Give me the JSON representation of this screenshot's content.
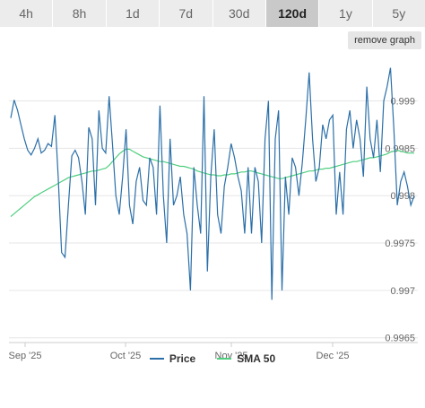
{
  "tabs": [
    {
      "label": "4h",
      "active": false
    },
    {
      "label": "8h",
      "active": false
    },
    {
      "label": "1d",
      "active": false
    },
    {
      "label": "7d",
      "active": false
    },
    {
      "label": "30d",
      "active": false
    },
    {
      "label": "120d",
      "active": true
    },
    {
      "label": "1y",
      "active": false
    },
    {
      "label": "5y",
      "active": false
    }
  ],
  "remove_graph_label": "remove graph",
  "colors": {
    "price": "#2b6fa8",
    "sma": "#4fce7f",
    "grid": "#e6e6e6",
    "tab_bg": "#ececec",
    "tab_active": "#c9c9c9"
  },
  "chart_data": {
    "type": "line",
    "x_tick_labels": [
      "Sep '25",
      "Oct '25",
      "Nov '25",
      "Dec '25"
    ],
    "y_ticks": [
      0.999,
      0.9985,
      0.998,
      0.9975,
      0.997,
      0.9965
    ],
    "y_tick_labels": [
      "0.999",
      "0.9985",
      "0.998",
      "0.9975",
      "0.997",
      "0.9965"
    ],
    "ylim": [
      0.99645,
      0.99945
    ],
    "series": [
      {
        "name": "Price",
        "values": [
          0.99882,
          0.99901,
          0.9989,
          0.99875,
          0.9986,
          0.99848,
          0.99843,
          0.9985,
          0.9986,
          0.99845,
          0.99848,
          0.99855,
          0.99852,
          0.99885,
          0.9982,
          0.9974,
          0.99735,
          0.9979,
          0.99842,
          0.99848,
          0.9984,
          0.99815,
          0.9978,
          0.99872,
          0.9986,
          0.9979,
          0.9989,
          0.9985,
          0.99845,
          0.99905,
          0.99855,
          0.998,
          0.9978,
          0.9982,
          0.9987,
          0.9979,
          0.9977,
          0.99815,
          0.9983,
          0.99795,
          0.9979,
          0.9984,
          0.9983,
          0.9978,
          0.99895,
          0.998,
          0.9975,
          0.9986,
          0.9979,
          0.998,
          0.9982,
          0.9978,
          0.9976,
          0.997,
          0.9983,
          0.9979,
          0.9976,
          0.99905,
          0.9972,
          0.9982,
          0.9987,
          0.9978,
          0.9976,
          0.9981,
          0.9983,
          0.99855,
          0.9984,
          0.9982,
          0.99805,
          0.9976,
          0.9983,
          0.9976,
          0.9983,
          0.99815,
          0.9975,
          0.9986,
          0.999,
          0.9969,
          0.9986,
          0.9989,
          0.997,
          0.9982,
          0.9978,
          0.9984,
          0.9983,
          0.998,
          0.99835,
          0.9988,
          0.9993,
          0.9986,
          0.99815,
          0.9983,
          0.99875,
          0.9986,
          0.9988,
          0.99885,
          0.9978,
          0.99825,
          0.9978,
          0.9987,
          0.9989,
          0.9985,
          0.9988,
          0.9986,
          0.9982,
          0.99915,
          0.9986,
          0.9984,
          0.9988,
          0.99825,
          0.999,
          0.99915,
          0.99935,
          0.9987,
          0.9979,
          0.99815,
          0.99825,
          0.9981,
          0.9979,
          0.998
        ]
      },
      {
        "name": "SMA 50",
        "values": [
          0.99778,
          0.99781,
          0.99784,
          0.99787,
          0.9979,
          0.99793,
          0.99796,
          0.99799,
          0.99801,
          0.99803,
          0.99805,
          0.99807,
          0.99809,
          0.99811,
          0.99813,
          0.99815,
          0.99817,
          0.99819,
          0.9982,
          0.99821,
          0.99822,
          0.99823,
          0.99824,
          0.99825,
          0.99826,
          0.99826,
          0.99827,
          0.99828,
          0.99829,
          0.99832,
          0.99836,
          0.9984,
          0.99844,
          0.99847,
          0.99849,
          0.99849,
          0.99847,
          0.99845,
          0.99843,
          0.99841,
          0.9984,
          0.99839,
          0.99838,
          0.99837,
          0.99836,
          0.99836,
          0.99835,
          0.99834,
          0.99833,
          0.99832,
          0.99831,
          0.99831,
          0.9983,
          0.99829,
          0.99828,
          0.99826,
          0.99825,
          0.99824,
          0.99823,
          0.99822,
          0.99822,
          0.99821,
          0.99821,
          0.99822,
          0.99822,
          0.99823,
          0.99823,
          0.99824,
          0.99825,
          0.99825,
          0.99826,
          0.99826,
          0.99825,
          0.99824,
          0.99823,
          0.99822,
          0.99821,
          0.9982,
          0.99819,
          0.99818,
          0.99818,
          0.99819,
          0.9982,
          0.99821,
          0.99822,
          0.99823,
          0.99824,
          0.99825,
          0.99826,
          0.99826,
          0.99827,
          0.99828,
          0.99828,
          0.99829,
          0.99829,
          0.9983,
          0.99831,
          0.99832,
          0.99833,
          0.99834,
          0.99835,
          0.99836,
          0.99836,
          0.99837,
          0.99838,
          0.99839,
          0.9984,
          0.9984,
          0.99841,
          0.99842,
          0.99843,
          0.99844,
          0.99846,
          0.99847,
          0.99848,
          0.99847,
          0.99846,
          0.99845,
          0.99845,
          0.99845
        ]
      }
    ]
  },
  "legend": [
    {
      "label": "Price",
      "color": "#2b6fa8"
    },
    {
      "label": "SMA 50",
      "color": "#4fce7f"
    }
  ]
}
